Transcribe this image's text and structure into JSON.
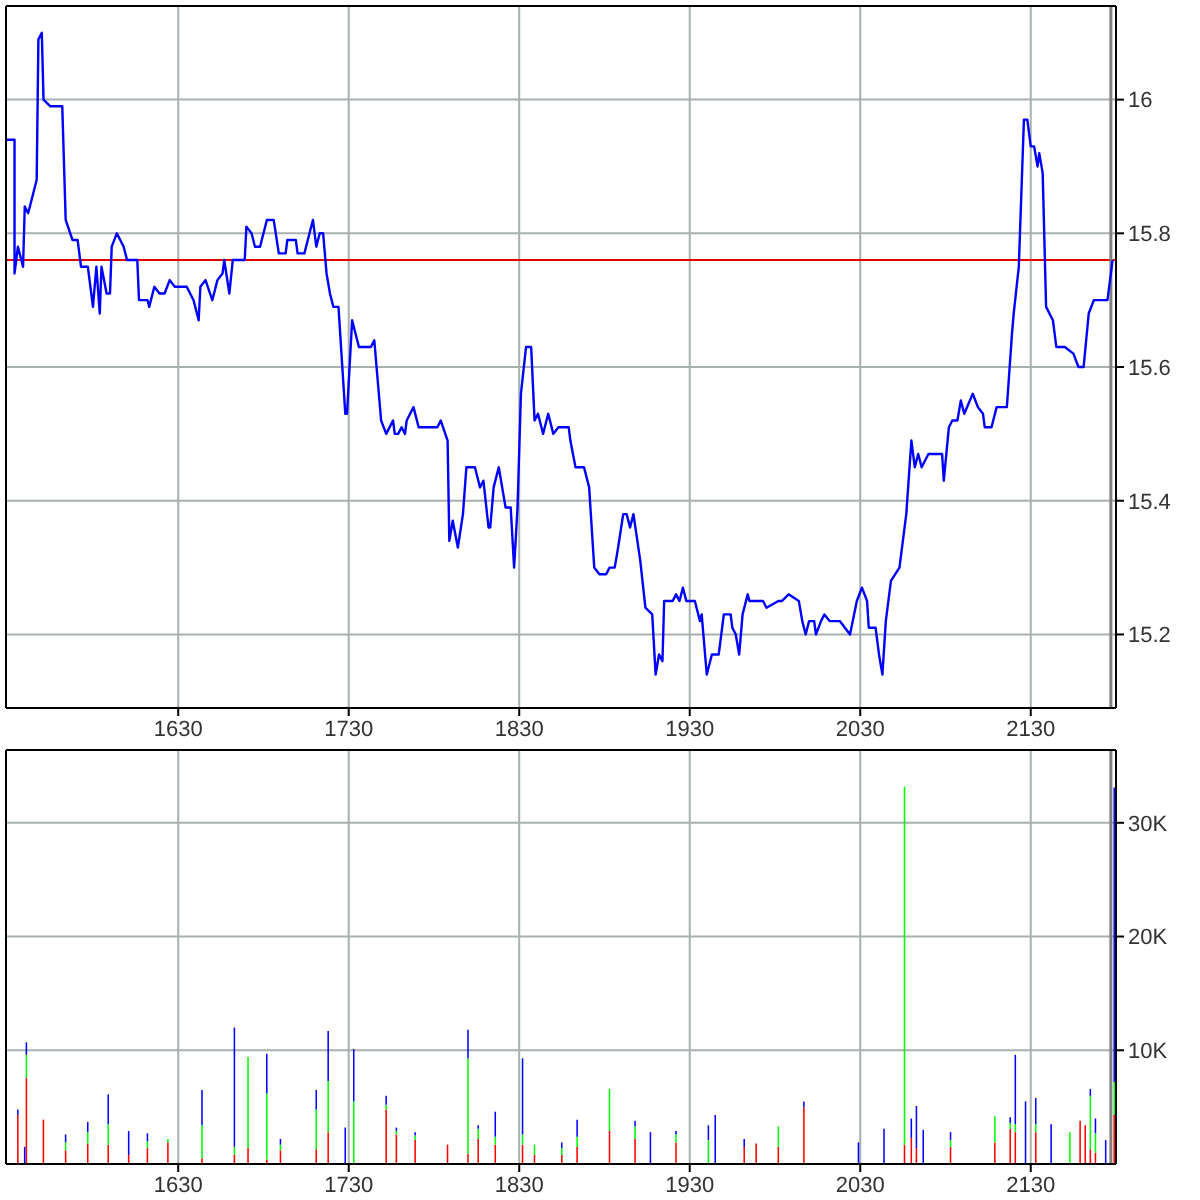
{
  "chart_data": [
    {
      "type": "line",
      "marker": "none",
      "grid": true,
      "x": [
        1529,
        1534,
        1534,
        1536,
        1539,
        1540,
        1542,
        1547,
        1548,
        1550,
        1551,
        1555,
        1562,
        1564,
        1568,
        1571,
        1573,
        1577,
        1580,
        1582,
        1584,
        1585,
        1588,
        1590,
        1591,
        1594,
        1598,
        1600,
        1606,
        1607,
        1612,
        1613,
        1616,
        1619,
        1622,
        1625,
        1628,
        1635,
        1639,
        1642,
        1643,
        1646,
        1650,
        1653,
        1656,
        1657,
        1660,
        1662,
        1669,
        1670,
        1673,
        1675,
        1678,
        1682,
        1686,
        1689,
        1693,
        1694,
        1699,
        1700,
        1704,
        1706,
        1709,
        1711,
        1713,
        1715,
        1717,
        1719,
        1721,
        1724,
        1728,
        1729,
        1732,
        1736,
        1743,
        1745,
        1749,
        1752,
        1756,
        1757,
        1759,
        1761,
        1763,
        1764,
        1768,
        1771,
        1782,
        1784,
        1788,
        1789,
        1791,
        1794,
        1797,
        1799,
        1804,
        1807,
        1809,
        1812,
        1813,
        1815,
        1818,
        1822,
        1825,
        1827,
        1829,
        1831,
        1834,
        1837,
        1839,
        1841,
        1844,
        1847,
        1850,
        1853,
        1859,
        1860,
        1863,
        1868,
        1871,
        1874,
        1877,
        1881,
        1883,
        1886,
        1888,
        1891,
        1893,
        1895,
        1897,
        1901,
        1904,
        1908,
        1910,
        1912,
        1914,
        1915,
        1920,
        1922,
        1924,
        1926,
        1928,
        1933,
        1936,
        1937,
        1940,
        1943,
        1947,
        1950,
        1954,
        1955,
        1957,
        1959,
        1961,
        1964,
        1965,
        1971,
        1973,
        1975,
        1982,
        1984,
        1988,
        1994,
        1996,
        1998,
        2000,
        2003,
        2004,
        2007,
        2009,
        2012,
        2018,
        2021,
        2024,
        2028,
        2031,
        2034,
        2035,
        2039,
        2041,
        2043,
        2045,
        2048,
        2053,
        2057,
        2060,
        2062,
        2064,
        2066,
        2070,
        2078,
        2079,
        2082,
        2084,
        2087,
        2089,
        2091,
        2096,
        2099,
        2102,
        2103,
        2107,
        2110,
        2113,
        2116,
        2119,
        2120,
        2123,
        2126,
        2128,
        2130,
        2132,
        2134,
        2135,
        2137,
        2139,
        2143,
        2145,
        2150,
        2155,
        2158,
        2161,
        2164,
        2167,
        2175,
        2178
      ],
      "series": [
        {
          "color": "#0000ff",
          "values": [
            15.94,
            15.94,
            15.74,
            15.78,
            15.75,
            15.84,
            15.83,
            15.88,
            16.09,
            16.1,
            16.0,
            15.99,
            15.99,
            15.82,
            15.79,
            15.79,
            15.75,
            15.75,
            15.69,
            15.75,
            15.68,
            15.75,
            15.71,
            15.71,
            15.78,
            15.8,
            15.78,
            15.76,
            15.76,
            15.7,
            15.7,
            15.69,
            15.72,
            15.71,
            15.71,
            15.73,
            15.72,
            15.72,
            15.7,
            15.67,
            15.72,
            15.73,
            15.7,
            15.73,
            15.74,
            15.76,
            15.71,
            15.76,
            15.76,
            15.81,
            15.8,
            15.78,
            15.78,
            15.82,
            15.82,
            15.77,
            15.77,
            15.79,
            15.79,
            15.77,
            15.77,
            15.79,
            15.82,
            15.78,
            15.8,
            15.8,
            15.74,
            15.71,
            15.69,
            15.69,
            15.53,
            15.53,
            15.67,
            15.63,
            15.63,
            15.64,
            15.52,
            15.5,
            15.52,
            15.5,
            15.5,
            15.51,
            15.5,
            15.52,
            15.54,
            15.51,
            15.51,
            15.52,
            15.49,
            15.34,
            15.37,
            15.33,
            15.38,
            15.45,
            15.45,
            15.42,
            15.43,
            15.36,
            15.36,
            15.42,
            15.45,
            15.39,
            15.39,
            15.3,
            15.39,
            15.56,
            15.63,
            15.63,
            15.52,
            15.53,
            15.5,
            15.53,
            15.5,
            15.51,
            15.51,
            15.49,
            15.45,
            15.45,
            15.42,
            15.3,
            15.29,
            15.29,
            15.3,
            15.3,
            15.33,
            15.38,
            15.38,
            15.36,
            15.38,
            15.31,
            15.24,
            15.23,
            15.14,
            15.17,
            15.16,
            15.25,
            15.25,
            15.26,
            15.25,
            15.27,
            15.25,
            15.25,
            15.22,
            15.23,
            15.14,
            15.17,
            15.17,
            15.23,
            15.23,
            15.21,
            15.2,
            15.17,
            15.23,
            15.26,
            15.25,
            15.25,
            15.25,
            15.24,
            15.25,
            15.25,
            15.26,
            15.25,
            15.22,
            15.2,
            15.22,
            15.22,
            15.2,
            15.22,
            15.23,
            15.22,
            15.22,
            15.21,
            15.2,
            15.25,
            15.27,
            15.25,
            15.21,
            15.21,
            15.17,
            15.14,
            15.22,
            15.28,
            15.3,
            15.38,
            15.49,
            15.45,
            15.47,
            15.45,
            15.47,
            15.47,
            15.43,
            15.51,
            15.52,
            15.52,
            15.55,
            15.53,
            15.56,
            15.54,
            15.53,
            15.51,
            15.51,
            15.54,
            15.54,
            15.54,
            15.65,
            15.68,
            15.75,
            15.97,
            15.97,
            15.93,
            15.93,
            15.9,
            15.92,
            15.89,
            15.69,
            15.67,
            15.63,
            15.63,
            15.62,
            15.6,
            15.6,
            15.68,
            15.7,
            15.7,
            15.76
          ]
        }
      ],
      "xlim": [
        1529,
        2180
      ],
      "xticks": [
        1630,
        1730,
        1830,
        1930,
        2030,
        2130
      ],
      "ylim": [
        15.09,
        16.14
      ],
      "yticks": [
        15.2,
        15.4,
        15.6,
        15.8,
        16
      ],
      "ref_lines": [
        {
          "axis": "y",
          "value": 15.76,
          "color": "#e00000"
        },
        {
          "axis": "x",
          "value": 2177,
          "color": "#808080"
        }
      ]
    },
    {
      "type": "bar",
      "stacked": true,
      "grid": true,
      "x": [
        1536,
        1540,
        1541,
        1551,
        1564,
        1577,
        1589,
        1601,
        1612,
        1624,
        1644,
        1663,
        1671,
        1682,
        1690,
        1711,
        1718,
        1728,
        1733,
        1752,
        1758,
        1769,
        1788,
        1800,
        1806,
        1816,
        1832,
        1839,
        1855,
        1864,
        1883,
        1898,
        1907,
        1922,
        1941,
        1945,
        1962,
        1969,
        1982,
        1997,
        2029,
        2044,
        2056,
        2060,
        2063,
        2067,
        2083,
        2109,
        2118,
        2121,
        2127,
        2133,
        2142,
        2153,
        2159,
        2162,
        2165,
        2168,
        2174,
        2179
      ],
      "series": [
        {
          "color": "#ff0000",
          "values": [
            4300,
            null,
            7600,
            3900,
            1200,
            1800,
            1700,
            800,
            1400,
            1900,
            500,
            800,
            1400,
            400,
            1200,
            1300,
            2800,
            null,
            null,
            4800,
            2600,
            2100,
            1700,
            900,
            2200,
            1700,
            1700,
            800,
            800,
            1500,
            2900,
            2200,
            null,
            1900,
            null,
            null,
            1500,
            1800,
            1500,
            5000,
            null,
            null,
            1700,
            2300,
            1400,
            null,
            1500,
            1900,
            3100,
            2800,
            null,
            2800,
            null,
            null,
            3800,
            3400,
            1300,
            1000,
            null,
            4300
          ]
        },
        {
          "color": "#00ff00",
          "values": [
            null,
            null,
            2000,
            null,
            700,
            1000,
            1800,
            null,
            600,
            300,
            2900,
            700,
            8000,
            5800,
            500,
            3500,
            4500,
            null,
            5500,
            400,
            300,
            400,
            null,
            8400,
            900,
            700,
            900,
            900,
            600,
            900,
            3700,
            1100,
            null,
            700,
            2100,
            null,
            null,
            null,
            1800,
            null,
            null,
            null,
            31500,
            null,
            null,
            null,
            600,
            2300,
            500,
            700,
            null,
            700,
            null,
            2800,
            null,
            null,
            4700,
            1700,
            null,
            2900
          ]
        },
        {
          "color": "#0000ff",
          "values": [
            500,
            1500,
            1100,
            null,
            700,
            900,
            2600,
            2100,
            700,
            null,
            3100,
            10500,
            null,
            3500,
            500,
            1700,
            4400,
            3200,
            4600,
            800,
            300,
            300,
            null,
            2500,
            300,
            2200,
            6700,
            null,
            500,
            1500,
            null,
            500,
            2800,
            300,
            1300,
            4300,
            700,
            null,
            null,
            500,
            1900,
            3100,
            null,
            1700,
            3700,
            3000,
            700,
            null,
            500,
            6100,
            5500,
            2300,
            3500,
            null,
            null,
            null,
            600,
            1300,
            2100,
            25900
          ]
        }
      ],
      "xlim": [
        1529,
        2180
      ],
      "xticks": [
        1630,
        1730,
        1830,
        1930,
        2030,
        2130
      ],
      "ylim": [
        0,
        36400
      ],
      "yticks": [
        {
          "value": 10000,
          "label": "10K"
        },
        {
          "value": 20000,
          "label": "20K"
        },
        {
          "value": 30000,
          "label": "30K"
        }
      ],
      "ref_lines": [
        {
          "axis": "x",
          "value": 2177,
          "color": "#808080"
        }
      ]
    }
  ]
}
